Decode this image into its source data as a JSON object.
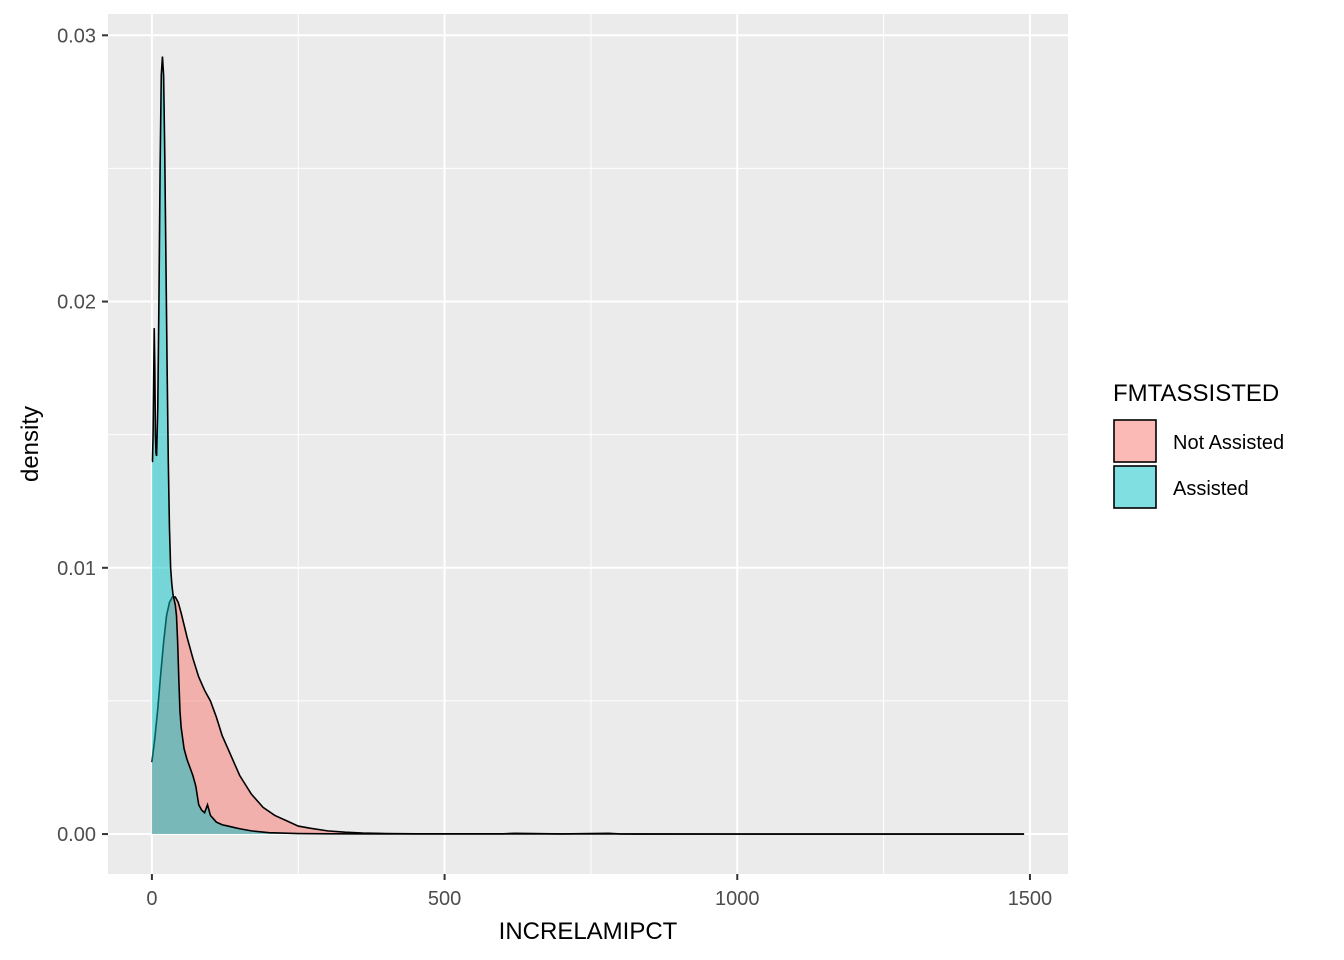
{
  "chart_data": {
    "type": "area",
    "subtype": "density",
    "title": "",
    "xlabel": "INCRELAMIPCT",
    "ylabel": "density",
    "xlim": [
      -75,
      1565
    ],
    "ylim": [
      -0.0015,
      0.0308
    ],
    "x_ticks": [
      0,
      500,
      1000,
      1500
    ],
    "x_tick_labels": [
      "0",
      "500",
      "1000",
      "1500"
    ],
    "y_ticks": [
      0.0,
      0.01,
      0.02,
      0.03
    ],
    "y_tick_labels": [
      "0.00",
      "0.01",
      "0.02",
      "0.03"
    ],
    "grid": true,
    "background": "#EBEBEB",
    "legend": {
      "title": "FMTASSISTED",
      "position": "right",
      "entries": [
        "Not Assisted",
        "Assisted"
      ]
    },
    "series": [
      {
        "name": "Not Assisted",
        "color": "#F8766D",
        "alpha": 0.5,
        "x": [
          0,
          5,
          10,
          15,
          20,
          25,
          30,
          35,
          40,
          45,
          50,
          60,
          70,
          80,
          90,
          100,
          110,
          120,
          130,
          140,
          150,
          170,
          190,
          210,
          230,
          250,
          270,
          300,
          330,
          360,
          400,
          450,
          500,
          600,
          620,
          700,
          780,
          800,
          1000,
          1200,
          1490
        ],
        "y": [
          0.0027,
          0.0036,
          0.0047,
          0.006,
          0.0072,
          0.0082,
          0.0087,
          0.0089,
          0.0089,
          0.0087,
          0.0083,
          0.0074,
          0.0066,
          0.0059,
          0.0054,
          0.005,
          0.0044,
          0.0037,
          0.0032,
          0.0027,
          0.0022,
          0.0015,
          0.001,
          0.0007,
          0.0005,
          0.0003,
          0.00022,
          0.00012,
          7e-05,
          4e-05,
          2e-05,
          1e-05,
          1e-05,
          1e-05,
          3e-05,
          5e-06,
          3e-05,
          5e-06,
          2e-06,
          1e-06,
          0.0
        ]
      },
      {
        "name": "Assisted",
        "color": "#00BFC4",
        "alpha": 0.5,
        "x": [
          0,
          1,
          2,
          3,
          4,
          5,
          6,
          7,
          8,
          10,
          12,
          14,
          16,
          18,
          20,
          22,
          24,
          26,
          28,
          30,
          32,
          34,
          36,
          38,
          40,
          42,
          44,
          46,
          48,
          50,
          55,
          60,
          65,
          70,
          75,
          80,
          85,
          90,
          95,
          100,
          110,
          120,
          130,
          140,
          150,
          170,
          200,
          250,
          300,
          400,
          600,
          800,
          1000,
          1200,
          1490
        ],
        "y": [
          0.014,
          0.014,
          0.015,
          0.017,
          0.019,
          0.0175,
          0.015,
          0.0143,
          0.0142,
          0.016,
          0.02,
          0.025,
          0.0285,
          0.0292,
          0.0285,
          0.0255,
          0.0215,
          0.0175,
          0.014,
          0.0115,
          0.01,
          0.0094,
          0.009,
          0.0088,
          0.0086,
          0.0082,
          0.0072,
          0.0058,
          0.0046,
          0.004,
          0.0032,
          0.0028,
          0.0025,
          0.0022,
          0.0018,
          0.0011,
          0.0009,
          0.0008,
          0.0011,
          0.0007,
          0.00045,
          0.00035,
          0.0003,
          0.00025,
          0.0002,
          0.00012,
          5e-05,
          2e-05,
          1e-05,
          5e-06,
          3e-06,
          2e-06,
          1e-06,
          5e-07,
          0.0
        ]
      }
    ]
  }
}
